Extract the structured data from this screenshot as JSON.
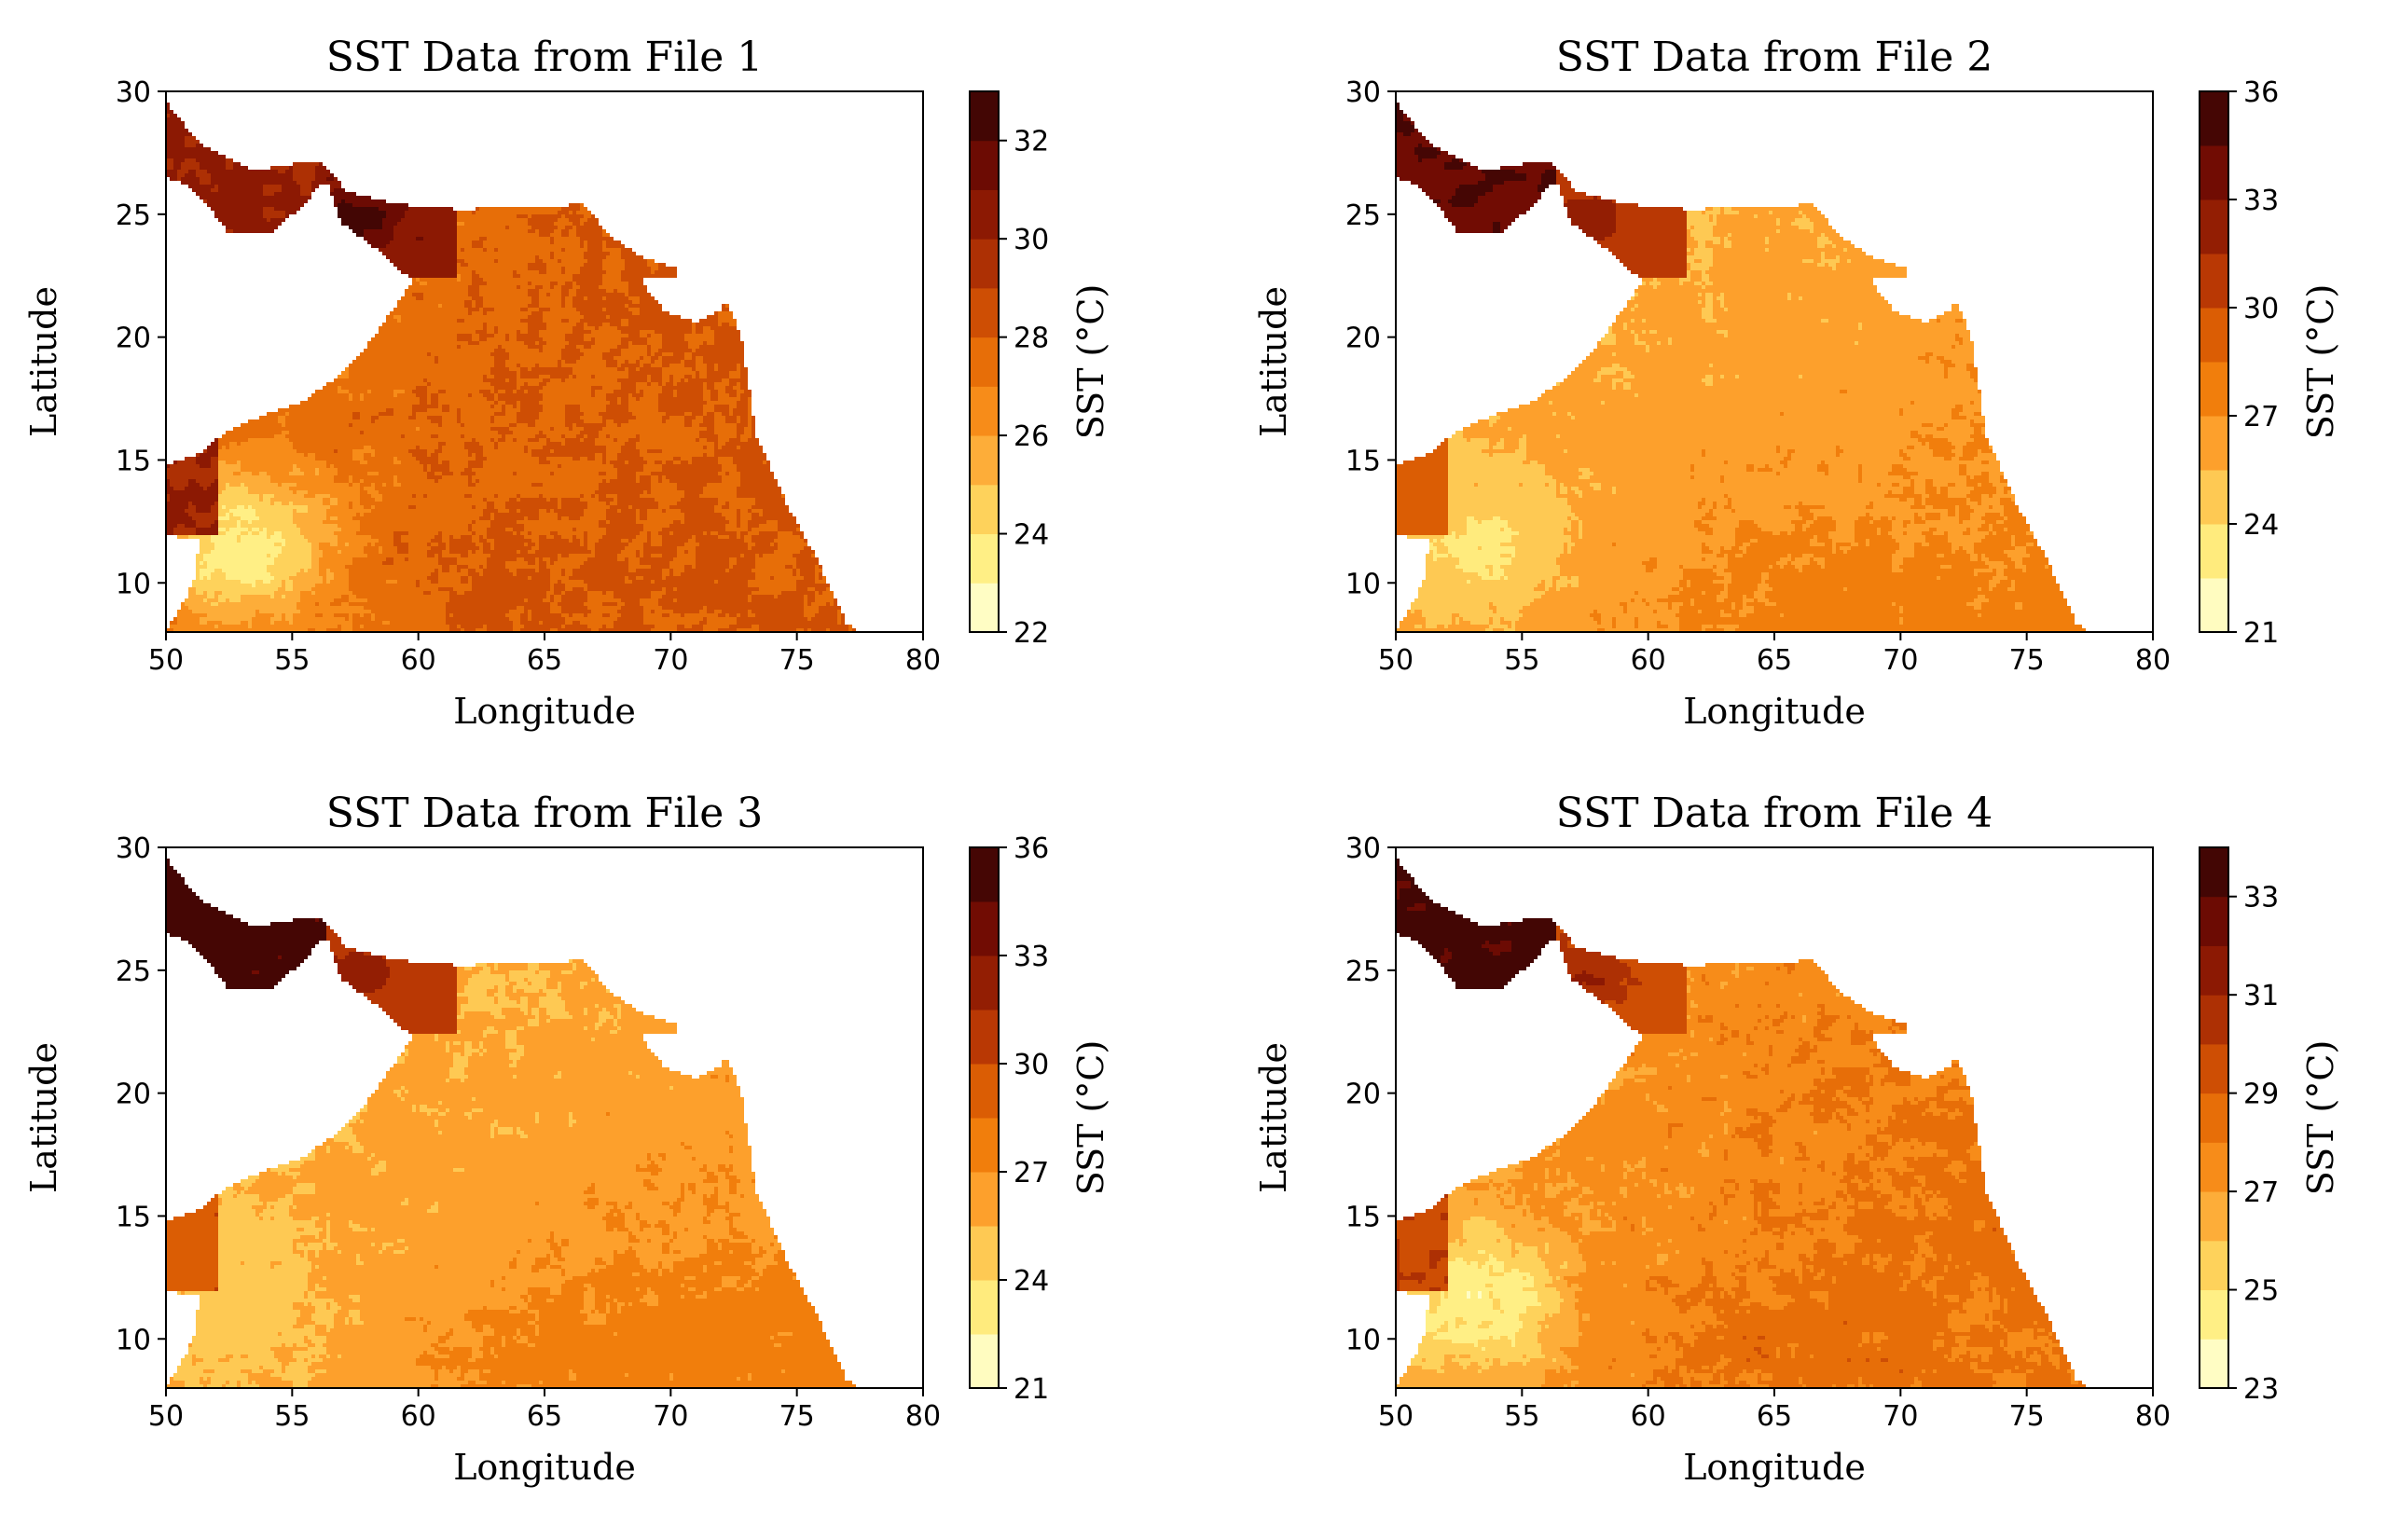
{
  "colors": {
    "background": "#ffffff",
    "axis": "#000000",
    "land": "#ffffff",
    "cmap_afmhot_r": [
      "#ffffe8",
      "#fffaa0",
      "#ffe36a",
      "#fdc04b",
      "#fd9a27",
      "#f07d0b",
      "#dd5f04",
      "#bf3c04",
      "#9a2303",
      "#7d0f02",
      "#5a0604",
      "#2c0503"
    ]
  },
  "chart_data": [
    {
      "type": "heatmap",
      "title": "SST Data from File 1",
      "xlabel": "Longitude",
      "ylabel": "Latitude",
      "xlim": [
        50,
        80
      ],
      "ylim": [
        8,
        30
      ],
      "xticks": [
        50,
        55,
        60,
        65,
        70,
        75,
        80
      ],
      "yticks": [
        10,
        15,
        20,
        25,
        30
      ],
      "colorbar": {
        "label": "SST (°C)",
        "range": [
          22,
          33
        ],
        "levels": 11,
        "ticks": [
          22,
          24,
          26,
          28,
          30,
          32
        ]
      },
      "regions": {
        "persian_gulf": 30.2,
        "gulf_of_oman_core": 32.6,
        "gulf_of_oman_outer": 30.6,
        "red_sea_aden": 30.0,
        "open_sea_northwest": 27.0,
        "open_sea_northeast": 28.6,
        "somali_upwelling": 23.4,
        "central": 27.6,
        "south_east": 28.4,
        "lakshadweep": 27.4
      }
    },
    {
      "type": "heatmap",
      "title": "SST Data from File 2",
      "xlabel": "Longitude",
      "ylabel": "Latitude",
      "xlim": [
        50,
        80
      ],
      "ylim": [
        8,
        30
      ],
      "xticks": [
        50,
        55,
        60,
        65,
        70,
        75,
        80
      ],
      "yticks": [
        10,
        15,
        20,
        25,
        30
      ],
      "colorbar": {
        "label": "SST (°C)",
        "range": [
          21,
          36
        ],
        "levels": 10,
        "ticks": [
          21,
          24,
          27,
          30,
          33,
          36
        ]
      },
      "regions": {
        "persian_gulf": 34.3,
        "gulf_of_oman_core": 32.4,
        "gulf_of_oman_outer": 30.4,
        "red_sea_aden": 29.2,
        "open_sea_northwest": 25.2,
        "open_sea_northeast": 26.4,
        "somali_upwelling": 23.8,
        "central": 26.2,
        "south_east": 27.8,
        "lakshadweep": 27.2
      }
    },
    {
      "type": "heatmap",
      "title": "SST Data from File 3",
      "xlabel": "Longitude",
      "ylabel": "Latitude",
      "xlim": [
        50,
        80
      ],
      "ylim": [
        8,
        30
      ],
      "xticks": [
        50,
        55,
        60,
        65,
        70,
        75,
        80
      ],
      "yticks": [
        10,
        15,
        20,
        25,
        30
      ],
      "colorbar": {
        "label": "SST (°C)",
        "range": [
          21,
          36
        ],
        "levels": 10,
        "ticks": [
          21,
          24,
          27,
          30,
          33,
          36
        ]
      },
      "regions": {
        "persian_gulf": 35.0,
        "gulf_of_oman_core": 32.4,
        "gulf_of_oman_outer": 30.4,
        "red_sea_aden": 29.6,
        "open_sea_northwest": 25.0,
        "open_sea_northeast": 26.4,
        "somali_upwelling": 24.6,
        "central": 25.8,
        "south_east": 28.0,
        "lakshadweep": 27.6
      }
    },
    {
      "type": "heatmap",
      "title": "SST Data from File 4",
      "xlabel": "Longitude",
      "ylabel": "Latitude",
      "xlim": [
        50,
        80
      ],
      "ylim": [
        8,
        30
      ],
      "xticks": [
        50,
        55,
        60,
        65,
        70,
        75,
        80
      ],
      "yticks": [
        10,
        15,
        20,
        25,
        30
      ],
      "colorbar": {
        "label": "SST (°C)",
        "range": [
          23,
          34
        ],
        "levels": 11,
        "ticks": [
          23,
          25,
          27,
          29,
          31,
          33
        ]
      },
      "regions": {
        "persian_gulf": 33.4,
        "gulf_of_oman_core": 31.0,
        "gulf_of_oman_outer": 29.6,
        "red_sea_aden": 29.8,
        "open_sea_northwest": 26.6,
        "open_sea_northeast": 28.6,
        "somali_upwelling": 24.4,
        "central": 27.2,
        "south_east": 28.6,
        "lakshadweep": 27.8
      }
    }
  ]
}
